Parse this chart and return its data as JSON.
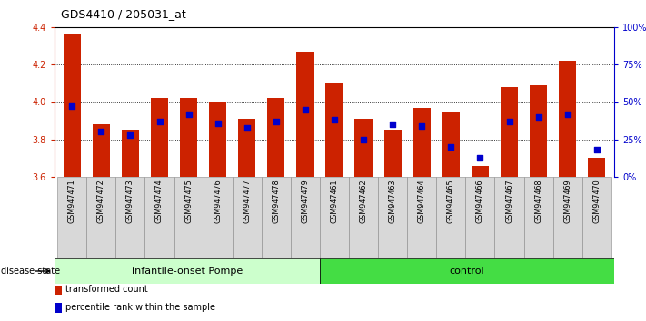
{
  "title": "GDS4410 / 205031_at",
  "samples": [
    "GSM947471",
    "GSM947472",
    "GSM947473",
    "GSM947474",
    "GSM947475",
    "GSM947476",
    "GSM947477",
    "GSM947478",
    "GSM947479",
    "GSM947461",
    "GSM947462",
    "GSM947463",
    "GSM947464",
    "GSM947465",
    "GSM947466",
    "GSM947467",
    "GSM947468",
    "GSM947469",
    "GSM947470"
  ],
  "transformed_count": [
    4.36,
    3.88,
    3.85,
    4.02,
    4.02,
    4.0,
    3.91,
    4.02,
    4.27,
    4.1,
    3.91,
    3.85,
    3.97,
    3.95,
    3.66,
    4.08,
    4.09,
    4.22,
    3.7
  ],
  "percentile_rank": [
    47,
    30,
    28,
    37,
    42,
    36,
    33,
    37,
    45,
    38,
    25,
    35,
    34,
    20,
    13,
    37,
    40,
    42,
    18
  ],
  "group1_label": "infantile-onset Pompe",
  "group2_label": "control",
  "group1_count": 9,
  "group2_count": 10,
  "ymin": 3.6,
  "ymax": 4.4,
  "yticks": [
    3.6,
    3.8,
    4.0,
    4.2,
    4.4
  ],
  "right_yticks": [
    0,
    25,
    50,
    75,
    100
  ],
  "right_yticklabels": [
    "0%",
    "25%",
    "50%",
    "75%",
    "100%"
  ],
  "bar_color": "#cc2200",
  "dot_color": "#0000cc",
  "group1_bg": "#ccffcc",
  "group2_bg": "#44dd44",
  "xlabel_color": "#cc2200",
  "right_axis_color": "#0000cc",
  "legend_bar_label": "transformed count",
  "legend_dot_label": "percentile rank within the sample",
  "disease_state_label": "disease state",
  "bar_width": 0.6
}
